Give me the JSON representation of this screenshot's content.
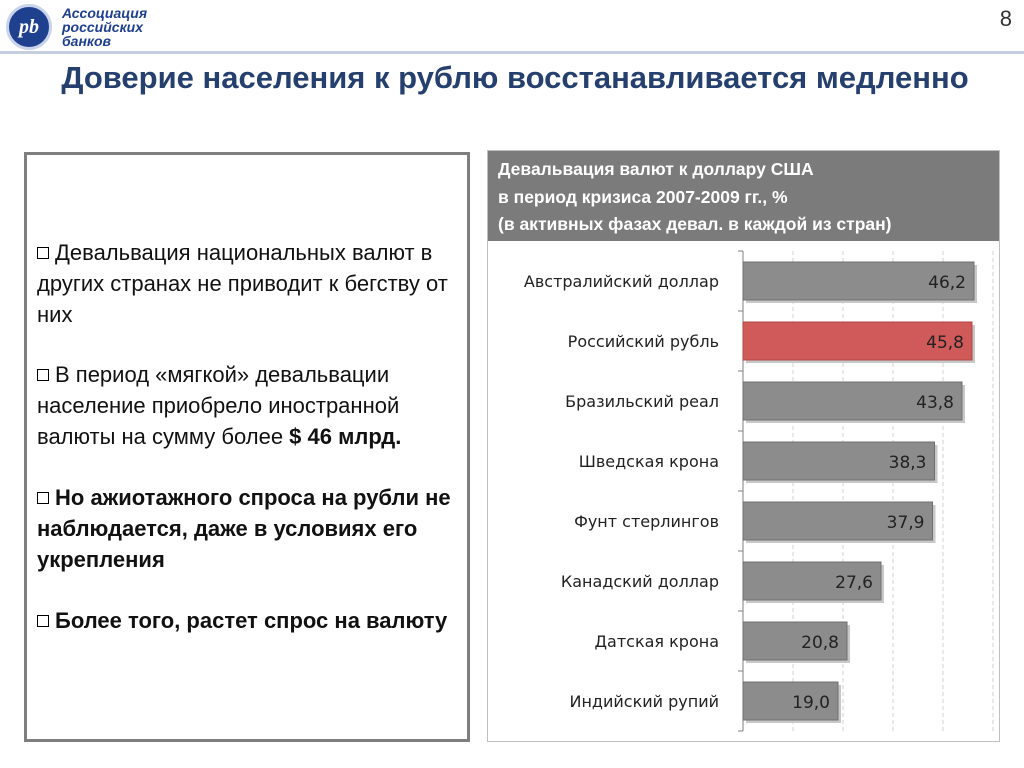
{
  "logo": {
    "mark": "pb",
    "text_lines": [
      "Ассоциация",
      "российских",
      "банков"
    ]
  },
  "slide_number": "8",
  "title": "Доверие населения к рублю восстанавливается медленно",
  "bullets": [
    {
      "text": "Девальвация национальных валют в других странах не приводит к бегству от них"
    },
    {
      "text_before": "В период «мягкой» девальвации население приобрело иностранной валюты на сумму более ",
      "text_bold": "$ 46 млрд."
    },
    {
      "text": "Но ажиотажного спроса на рубли не наблюдается, даже в условиях его укрепления"
    },
    {
      "text": "Более того, растет спрос на валюту"
    }
  ],
  "colors": {
    "bar": "#8c8c8c",
    "bar_highlight": "#d05a5a",
    "header_bg": "#7b7b7b",
    "title": "#25406e"
  },
  "chart_data": {
    "type": "bar",
    "orientation": "horizontal",
    "title_lines": [
      "Девальвация валют к доллару США",
      "в период кризиса 2007-2009 гг., %",
      "(в активных фазах девал. в каждой из стран)"
    ],
    "categories": [
      "Австралийский доллар",
      "Российский рубль",
      "Бразильский реал",
      "Шведская крона",
      "Фунт стерлингов",
      "Канадский доллар",
      "Датская крона",
      "Индийский рупий"
    ],
    "values": [
      46.2,
      45.8,
      43.8,
      38.3,
      37.9,
      27.6,
      20.8,
      19.0
    ],
    "value_labels": [
      "46,2",
      "45,8",
      "43,8",
      "38,3",
      "37,9",
      "27,6",
      "20,8",
      "19,0"
    ],
    "highlight_index": 1,
    "xlim": [
      0,
      50
    ],
    "grid": true,
    "legend": "none"
  }
}
